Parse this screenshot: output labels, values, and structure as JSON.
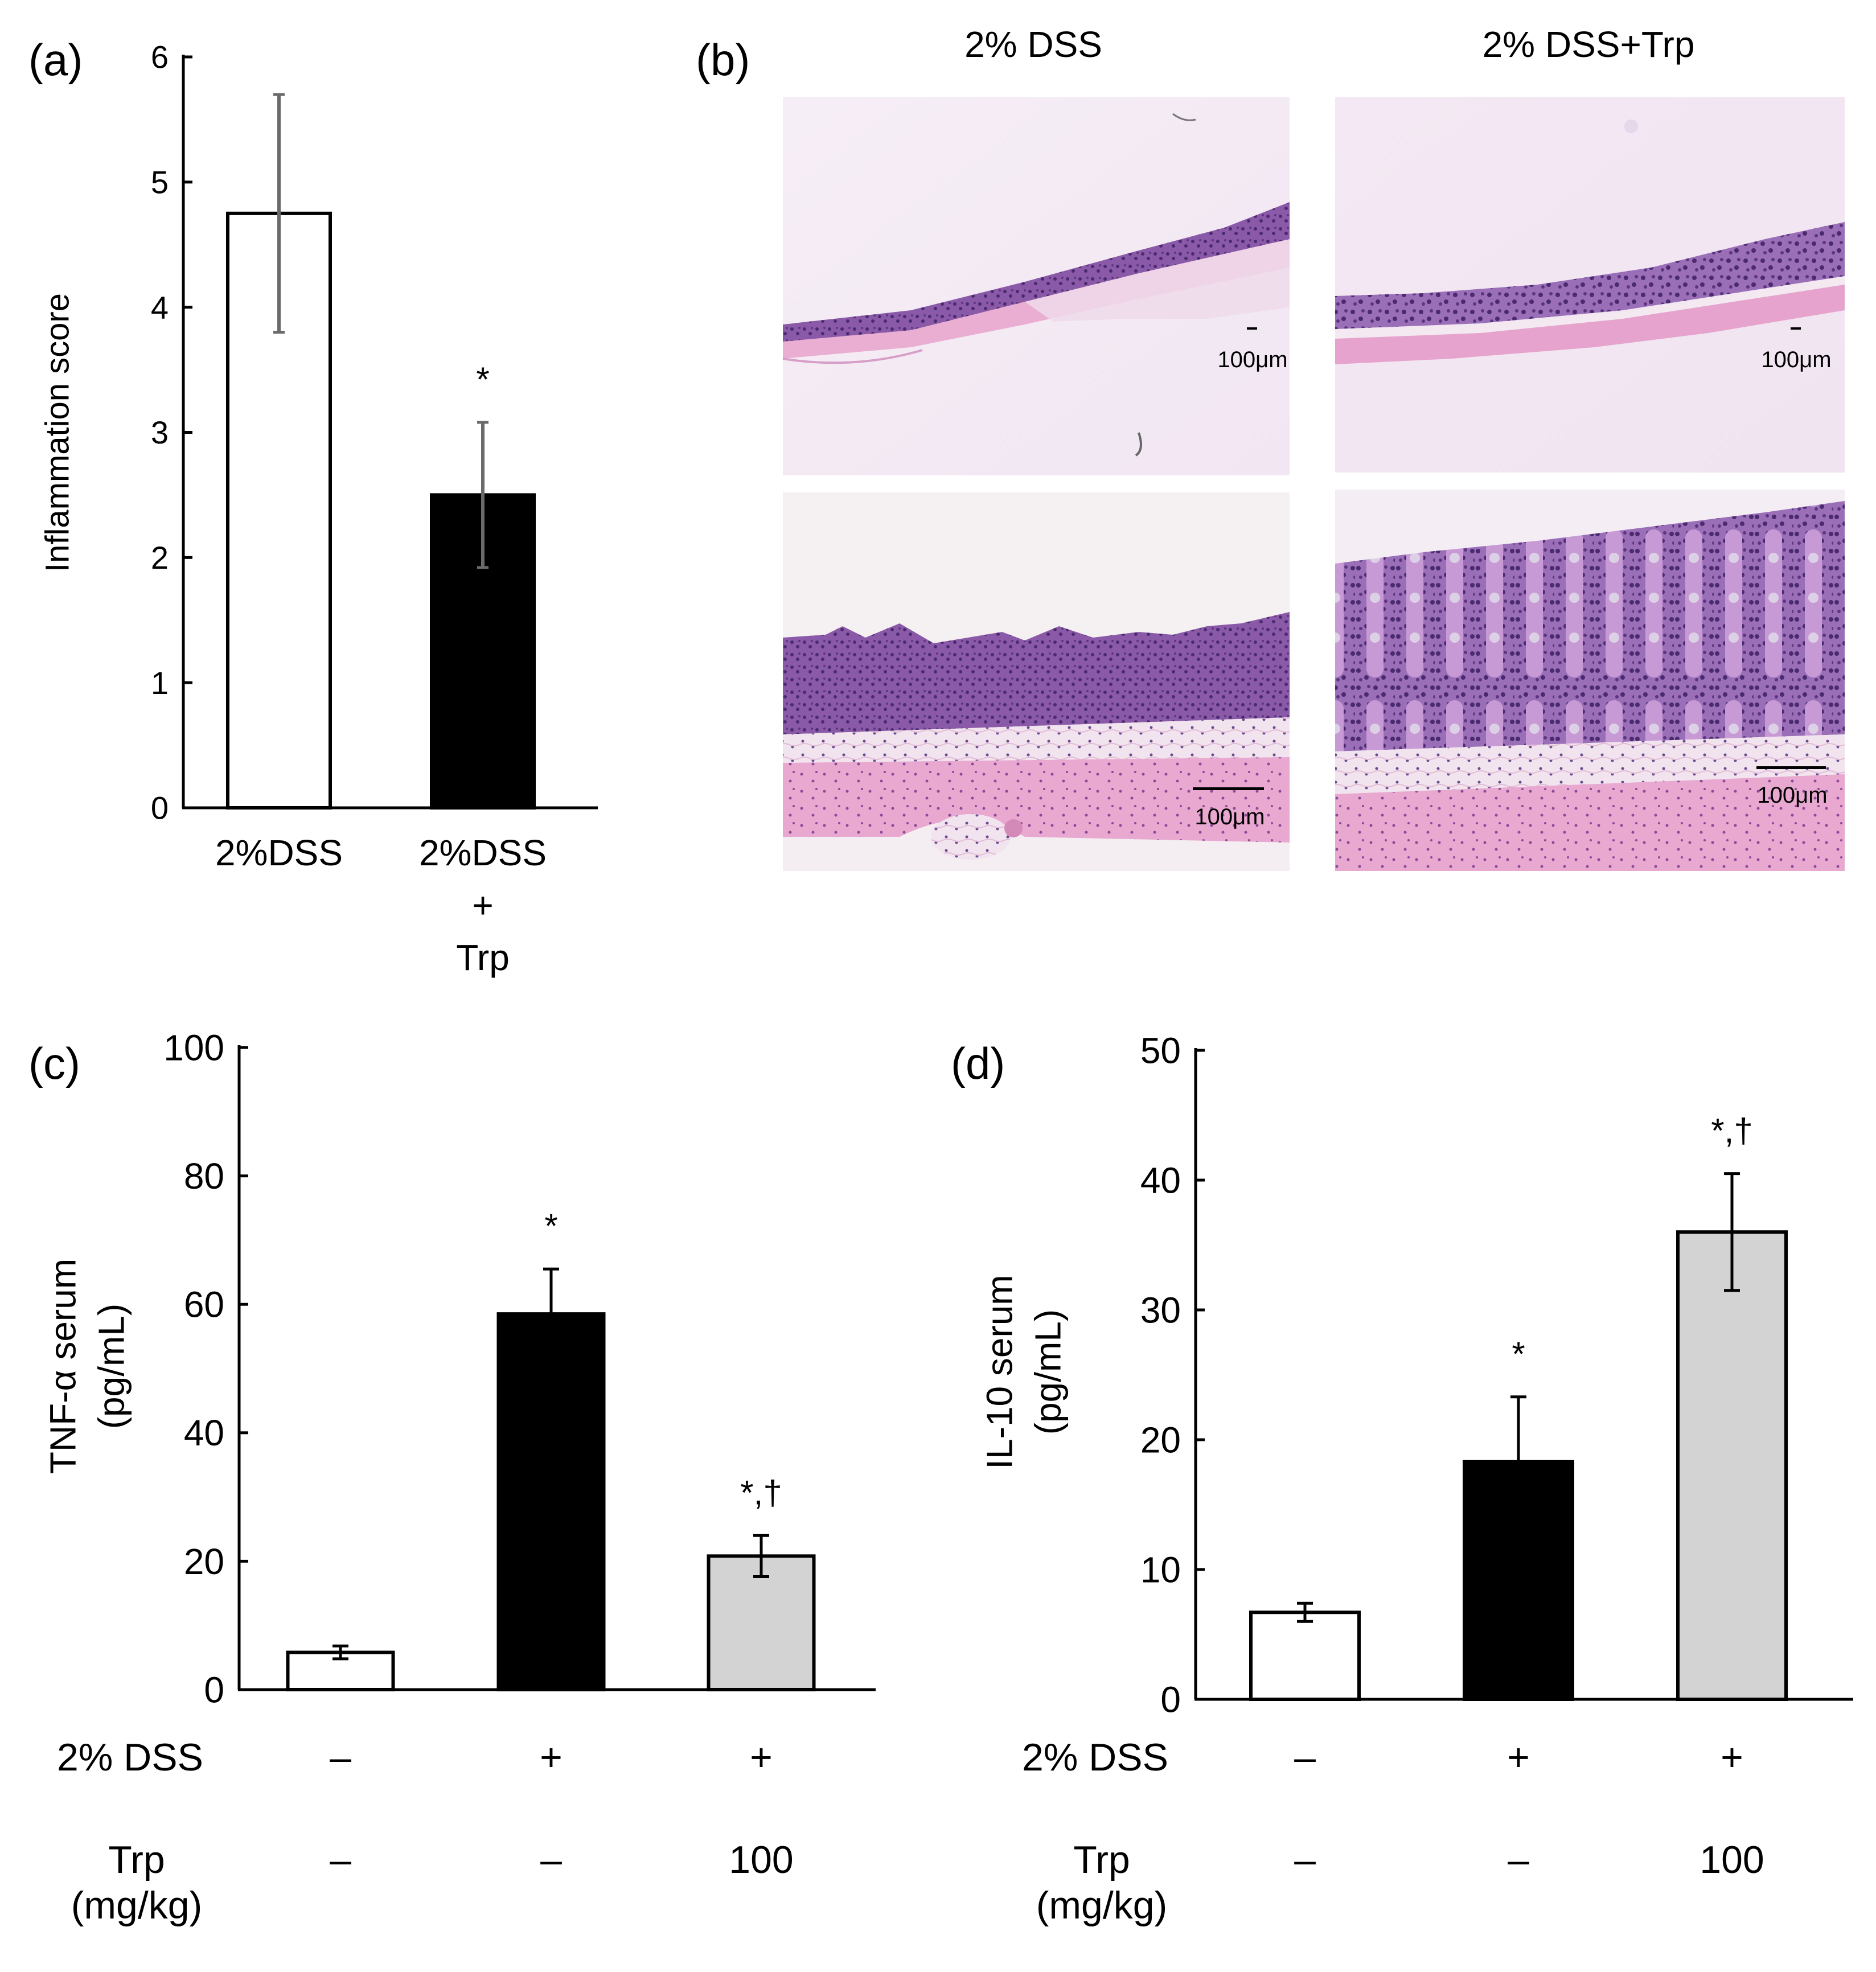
{
  "panel_labels": {
    "a": "(a)",
    "b": "(b)",
    "c": "(c)",
    "d": "(d)"
  },
  "colors": {
    "white_bar": "#ffffff",
    "black_bar": "#000000",
    "gray_bar": "#d3d3d3",
    "tissue_pink": "#e6a9d0",
    "tissue_purple": "#7b4a9e"
  },
  "chart_data": [
    {
      "id": "a",
      "type": "bar",
      "ylabel": "Inflammation score",
      "ylim": [
        0,
        6
      ],
      "yticks": [
        "0",
        "1",
        "2",
        "3",
        "4",
        "5",
        "6"
      ],
      "categories": [
        [
          "2%DSS"
        ],
        [
          "2%DSS",
          "+",
          "Trp"
        ]
      ],
      "values": [
        4.75,
        2.5
      ],
      "errors": [
        0.95,
        0.58
      ],
      "annotations": [
        "",
        "*"
      ],
      "fills": [
        "#ffffff",
        "#000000"
      ]
    },
    {
      "id": "c",
      "type": "bar",
      "ylabel": "TNF-α serum",
      "ylabel2": "(pg/mL)",
      "ylim": [
        0,
        100
      ],
      "yticks": [
        "0",
        "20",
        "40",
        "60",
        "80",
        "100"
      ],
      "values": [
        5.8,
        58.5,
        20.8
      ],
      "errors": [
        1.0,
        7.0,
        3.2
      ],
      "annotations": [
        "",
        "*",
        "*,†"
      ],
      "fills": [
        "#ffffff",
        "#000000",
        "#d3d3d3"
      ],
      "table": {
        "rows": [
          {
            "label": [
              "2% DSS"
            ],
            "cells": [
              "–",
              "+",
              "+"
            ]
          },
          {
            "label": [
              "Trp",
              "(mg/kg)"
            ],
            "cells": [
              "–",
              "–",
              "100"
            ]
          }
        ]
      }
    },
    {
      "id": "d",
      "type": "bar",
      "ylabel": "IL-10 serum",
      "ylabel2": "(pg/mL)",
      "ylim": [
        0,
        50
      ],
      "yticks": [
        "0",
        "10",
        "20",
        "30",
        "40",
        "50"
      ],
      "values": [
        6.7,
        18.3,
        36.0
      ],
      "errors": [
        0.7,
        5.0,
        4.5
      ],
      "annotations": [
        "",
        "*",
        "*,†"
      ],
      "fills": [
        "#ffffff",
        "#000000",
        "#d3d3d3"
      ],
      "table": {
        "rows": [
          {
            "label": [
              "2% DSS"
            ],
            "cells": [
              "–",
              "+",
              "+"
            ]
          },
          {
            "label": [
              "Trp",
              "(mg/kg)"
            ],
            "cells": [
              "–",
              "–",
              "100"
            ]
          }
        ]
      }
    }
  ],
  "histology": {
    "column_titles": [
      "2% DSS",
      "2% DSS+Trp"
    ],
    "scale_bar_label": "100μm"
  }
}
